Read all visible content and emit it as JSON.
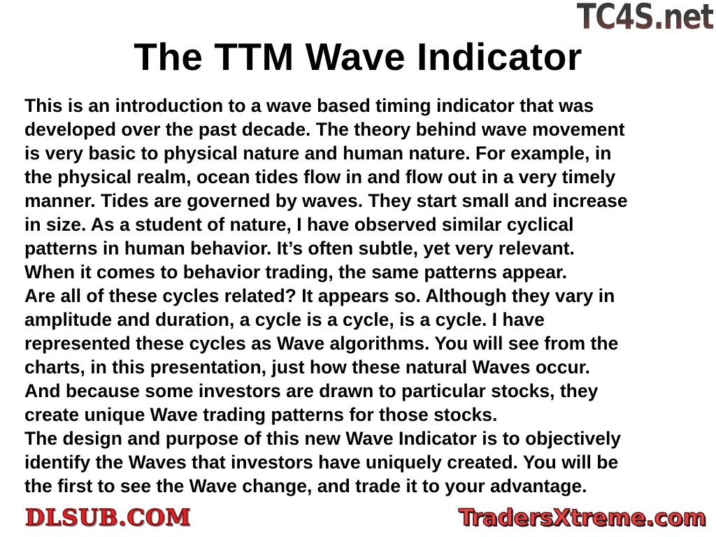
{
  "title": "The TTM Wave Indicator",
  "lines": [
    "This is an introduction to a wave based timing indicator that was",
    "developed over the past decade. The theory behind wave movement",
    "is very basic to physical nature and human nature. For example, in",
    "the physical realm, ocean tides flow in and flow out in a very timely",
    "manner. Tides are governed by waves. They start small and increase",
    "in size. As a student of nature, I have observed similar cyclical",
    "patterns in human behavior. It’s often subtle, yet very relevant.",
    "When it comes to behavior trading, the same patterns appear.",
    "Are all of these cycles related? It appears so. Although they vary in",
    "amplitude and duration, a cycle is a cycle, is a cycle. I have",
    "represented these cycles as Wave algorithms. You will see from the",
    "charts, in this presentation, just how these natural Waves occur.",
    "And because some investors are drawn to particular stocks, they",
    "create unique Wave trading patterns for those stocks.",
    "The design and purpose of this new Wave Indicator is to objectively",
    "identify the Waves that investors have uniquely created. You will be",
    "the first to see the Wave change, and trade it to your advantage."
  ],
  "watermarks": {
    "top_right": "TC4S.net",
    "center": "DLSUB.COM",
    "bottom_right": "TradersXtreme.com"
  }
}
